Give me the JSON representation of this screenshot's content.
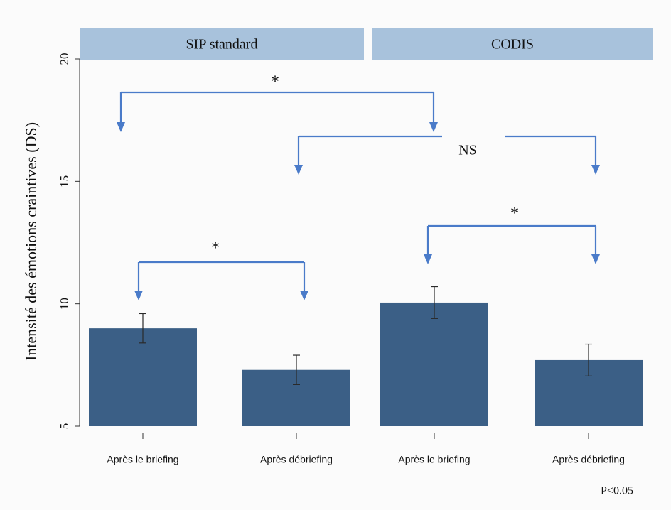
{
  "chart_data": {
    "type": "bar",
    "ylabel": "Intensité des émotions craintives (DS)",
    "ylim": [
      5,
      20
    ],
    "yticks": [
      5,
      10,
      15,
      20
    ],
    "color": "#3b5f86",
    "panels": [
      {
        "title": "SIP standard",
        "categories": [
          "Après le briefing",
          "Après débriefing"
        ],
        "values": [
          9.0,
          7.3
        ],
        "errors": [
          0.6,
          0.6
        ]
      },
      {
        "title": "CODIS",
        "categories": [
          "Après le briefing",
          "Après débriefing"
        ],
        "values": [
          10.05,
          7.7
        ],
        "errors": [
          0.65,
          0.65
        ]
      }
    ],
    "annotations": [
      "*",
      "NS",
      "*",
      "*"
    ],
    "note": "P<0.05"
  }
}
